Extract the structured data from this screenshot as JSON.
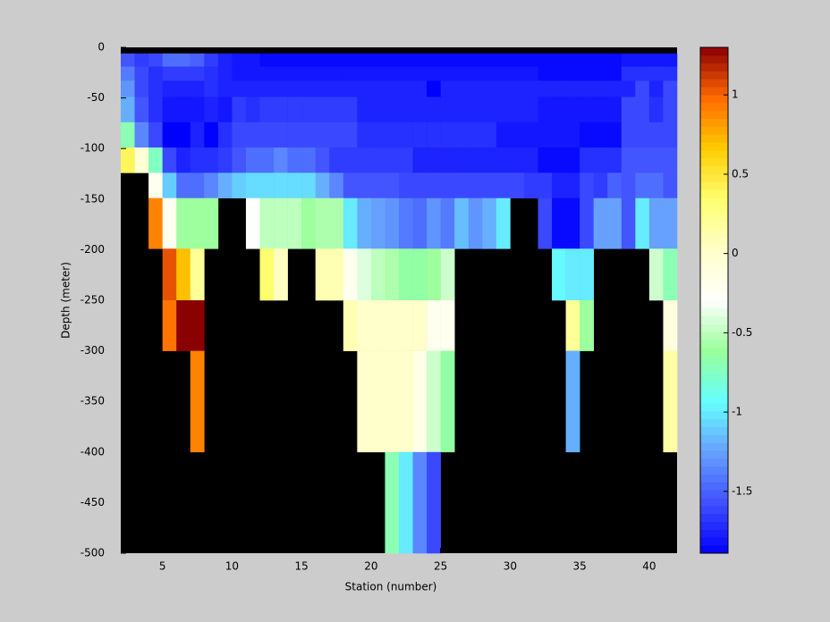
{
  "chart_data": {
    "type": "heatmap",
    "xlabel": "Station (number)",
    "ylabel": "Depth (meter)",
    "x": [
      2,
      3,
      4,
      5,
      6,
      7,
      8,
      9,
      10,
      11,
      12,
      13,
      14,
      15,
      16,
      17,
      18,
      19,
      20,
      21,
      22,
      23,
      24,
      25,
      26,
      27,
      28,
      29,
      30,
      31,
      32,
      33,
      34,
      35,
      36,
      37,
      38,
      39,
      40,
      41,
      42
    ],
    "y": [
      0,
      -6,
      -19,
      -33,
      -49,
      -74,
      -99,
      -124,
      -149,
      -199,
      -250,
      -300,
      -400,
      -500
    ],
    "z": [
      [
        null,
        null,
        null,
        null,
        null,
        null,
        null,
        null,
        null,
        null,
        null,
        null,
        null,
        null,
        null,
        null,
        null,
        null,
        null,
        null,
        null,
        null,
        null,
        null,
        null,
        null,
        null,
        null,
        null,
        null,
        null,
        null,
        null,
        null,
        null,
        null,
        null,
        null,
        null,
        null
      ],
      [
        -1.55,
        -1.65,
        -1.6,
        -1.45,
        -1.45,
        -1.5,
        -1.65,
        -1.75,
        -1.8,
        -1.8,
        -1.85,
        -1.85,
        -1.85,
        -1.85,
        -1.85,
        -1.85,
        -1.85,
        -1.85,
        -1.85,
        -1.85,
        -1.85,
        -1.85,
        -1.85,
        -1.85,
        -1.85,
        -1.85,
        -1.85,
        -1.85,
        -1.85,
        -1.85,
        -1.85,
        -1.85,
        -1.85,
        -1.85,
        -1.85,
        -1.85,
        -1.8,
        -1.8,
        -1.8,
        -1.8
      ],
      [
        -1.4,
        -1.6,
        -1.7,
        -1.65,
        -1.65,
        -1.65,
        -1.7,
        -1.75,
        -1.8,
        -1.8,
        -1.8,
        -1.8,
        -1.8,
        -1.8,
        -1.8,
        -1.8,
        -1.8,
        -1.8,
        -1.8,
        -1.8,
        -1.8,
        -1.8,
        -1.8,
        -1.8,
        -1.8,
        -1.8,
        -1.8,
        -1.8,
        -1.8,
        -1.8,
        -1.85,
        -1.85,
        -1.85,
        -1.85,
        -1.85,
        -1.85,
        -1.7,
        -1.7,
        -1.7,
        -1.7
      ],
      [
        -1.3,
        -1.6,
        -1.7,
        -1.75,
        -1.75,
        -1.75,
        -1.7,
        -1.75,
        -1.75,
        -1.75,
        -1.75,
        -1.75,
        -1.75,
        -1.75,
        -1.75,
        -1.75,
        -1.75,
        -1.75,
        -1.75,
        -1.75,
        -1.75,
        -1.75,
        -1.9,
        -1.75,
        -1.75,
        -1.75,
        -1.75,
        -1.75,
        -1.75,
        -1.75,
        -1.75,
        -1.75,
        -1.75,
        -1.75,
        -1.75,
        -1.75,
        -1.75,
        -1.6,
        -1.75,
        -1.6
      ],
      [
        -1.2,
        -1.55,
        -1.7,
        -1.8,
        -1.8,
        -1.8,
        -1.75,
        -1.8,
        -1.65,
        -1.7,
        -1.65,
        -1.65,
        -1.65,
        -1.65,
        -1.65,
        -1.65,
        -1.65,
        -1.75,
        -1.75,
        -1.75,
        -1.75,
        -1.75,
        -1.75,
        -1.75,
        -1.75,
        -1.75,
        -1.75,
        -1.75,
        -1.75,
        -1.75,
        -1.8,
        -1.8,
        -1.8,
        -1.8,
        -1.8,
        -1.8,
        -1.6,
        -1.6,
        -1.7,
        -1.6
      ],
      [
        -0.7,
        -1.35,
        -1.6,
        -1.9,
        -1.9,
        -1.75,
        -1.9,
        -1.7,
        -1.6,
        -1.6,
        -1.6,
        -1.6,
        -1.6,
        -1.6,
        -1.6,
        -1.6,
        -1.6,
        -1.7,
        -1.7,
        -1.7,
        -1.7,
        -1.7,
        -1.7,
        -1.7,
        -1.7,
        -1.7,
        -1.7,
        -1.8,
        -1.8,
        -1.8,
        -1.8,
        -1.8,
        -1.8,
        -1.85,
        -1.85,
        -1.85,
        -1.6,
        -1.6,
        -1.6,
        -1.6
      ],
      [
        0.4,
        -0.05,
        -0.75,
        -1.6,
        -1.75,
        -1.7,
        -1.7,
        -1.65,
        -1.55,
        -1.45,
        -1.45,
        -1.35,
        -1.45,
        -1.45,
        -1.55,
        -1.65,
        -1.65,
        -1.65,
        -1.65,
        -1.65,
        -1.65,
        -1.75,
        -1.75,
        -1.75,
        -1.75,
        -1.75,
        -1.75,
        -1.75,
        -1.75,
        -1.75,
        -1.85,
        -1.85,
        -1.85,
        -1.7,
        -1.7,
        -1.7,
        -1.55,
        -1.55,
        -1.55,
        -1.55
      ],
      [
        null,
        null,
        -0.2,
        -1.1,
        -1.45,
        -1.45,
        -1.35,
        -1.2,
        -1.1,
        -1.05,
        -1.05,
        -1.05,
        -1.05,
        -1.05,
        -1.2,
        -1.35,
        -1.55,
        -1.55,
        -1.55,
        -1.55,
        -1.6,
        -1.6,
        -1.6,
        -1.6,
        -1.6,
        -1.6,
        -1.6,
        -1.6,
        -1.6,
        -1.65,
        -1.65,
        -1.75,
        -1.75,
        -1.6,
        -1.65,
        -1.5,
        -1.55,
        -1.45,
        -1.45,
        -1.55
      ],
      [
        null,
        null,
        0.9,
        -0.2,
        -0.6,
        -0.6,
        -0.6,
        null,
        null,
        -0.3,
        -0.5,
        -0.5,
        -0.5,
        -0.6,
        -0.55,
        -0.55,
        -1.0,
        -1.2,
        -1.25,
        -1.3,
        -1.4,
        -1.45,
        -1.3,
        -1.4,
        -1.15,
        -1.3,
        -1.2,
        -1.0,
        null,
        null,
        -1.6,
        -1.85,
        -1.85,
        -1.6,
        -1.25,
        -1.25,
        -1.55,
        -1.0,
        -1.25,
        -1.25
      ],
      [
        null,
        null,
        null,
        1.05,
        0.7,
        0.2,
        null,
        null,
        null,
        null,
        0.35,
        0.05,
        null,
        null,
        0.1,
        0.1,
        -0.2,
        -0.4,
        -0.5,
        -0.55,
        -0.65,
        -0.65,
        -0.6,
        -0.45,
        null,
        null,
        null,
        null,
        null,
        null,
        null,
        -0.95,
        -1.0,
        -1.0,
        null,
        null,
        null,
        null,
        -0.45,
        -0.7
      ],
      [
        null,
        null,
        null,
        0.95,
        1.3,
        1.3,
        null,
        null,
        null,
        null,
        null,
        null,
        null,
        null,
        null,
        null,
        0.1,
        0,
        0,
        0,
        0,
        0,
        -0.2,
        -0.2,
        null,
        null,
        null,
        null,
        null,
        null,
        null,
        null,
        0.2,
        -0.6,
        null,
        null,
        null,
        null,
        null,
        -0.1
      ],
      [
        null,
        null,
        null,
        null,
        null,
        0.9,
        null,
        null,
        null,
        null,
        null,
        null,
        null,
        null,
        null,
        null,
        null,
        0,
        0,
        0,
        0,
        -0.15,
        -0.45,
        -0.65,
        null,
        null,
        null,
        null,
        null,
        null,
        null,
        null,
        -1.2,
        null,
        null,
        null,
        null,
        null,
        null,
        0.15
      ],
      [
        null,
        null,
        null,
        null,
        null,
        null,
        null,
        null,
        null,
        null,
        null,
        null,
        null,
        null,
        null,
        null,
        null,
        null,
        null,
        -0.7,
        -1.0,
        -1.35,
        -1.6,
        null,
        null,
        null,
        null,
        null,
        null,
        null,
        null,
        null,
        null,
        null,
        null,
        null,
        null,
        null,
        null,
        null
      ]
    ],
    "xlim": [
      2,
      42
    ],
    "ylim": [
      -500,
      0
    ],
    "xticks": [
      5,
      10,
      15,
      20,
      25,
      30,
      35,
      40
    ],
    "yticks": [
      0,
      -50,
      -100,
      -150,
      -200,
      -250,
      -300,
      -350,
      -400,
      -450,
      -500
    ],
    "clim": [
      -1.89,
      1.3
    ],
    "cticks": [
      -1.5,
      -1,
      -0.5,
      0,
      0.5,
      1
    ],
    "colormap": [
      "#0000ff",
      "#4050ff",
      "#66a0ff",
      "#66ffff",
      "#99ff99",
      "#ffffff",
      "#ffffc8",
      "#ffff70",
      "#ffcc00",
      "#ff6a00",
      "#8b0000"
    ],
    "nan_color": "#000000"
  }
}
